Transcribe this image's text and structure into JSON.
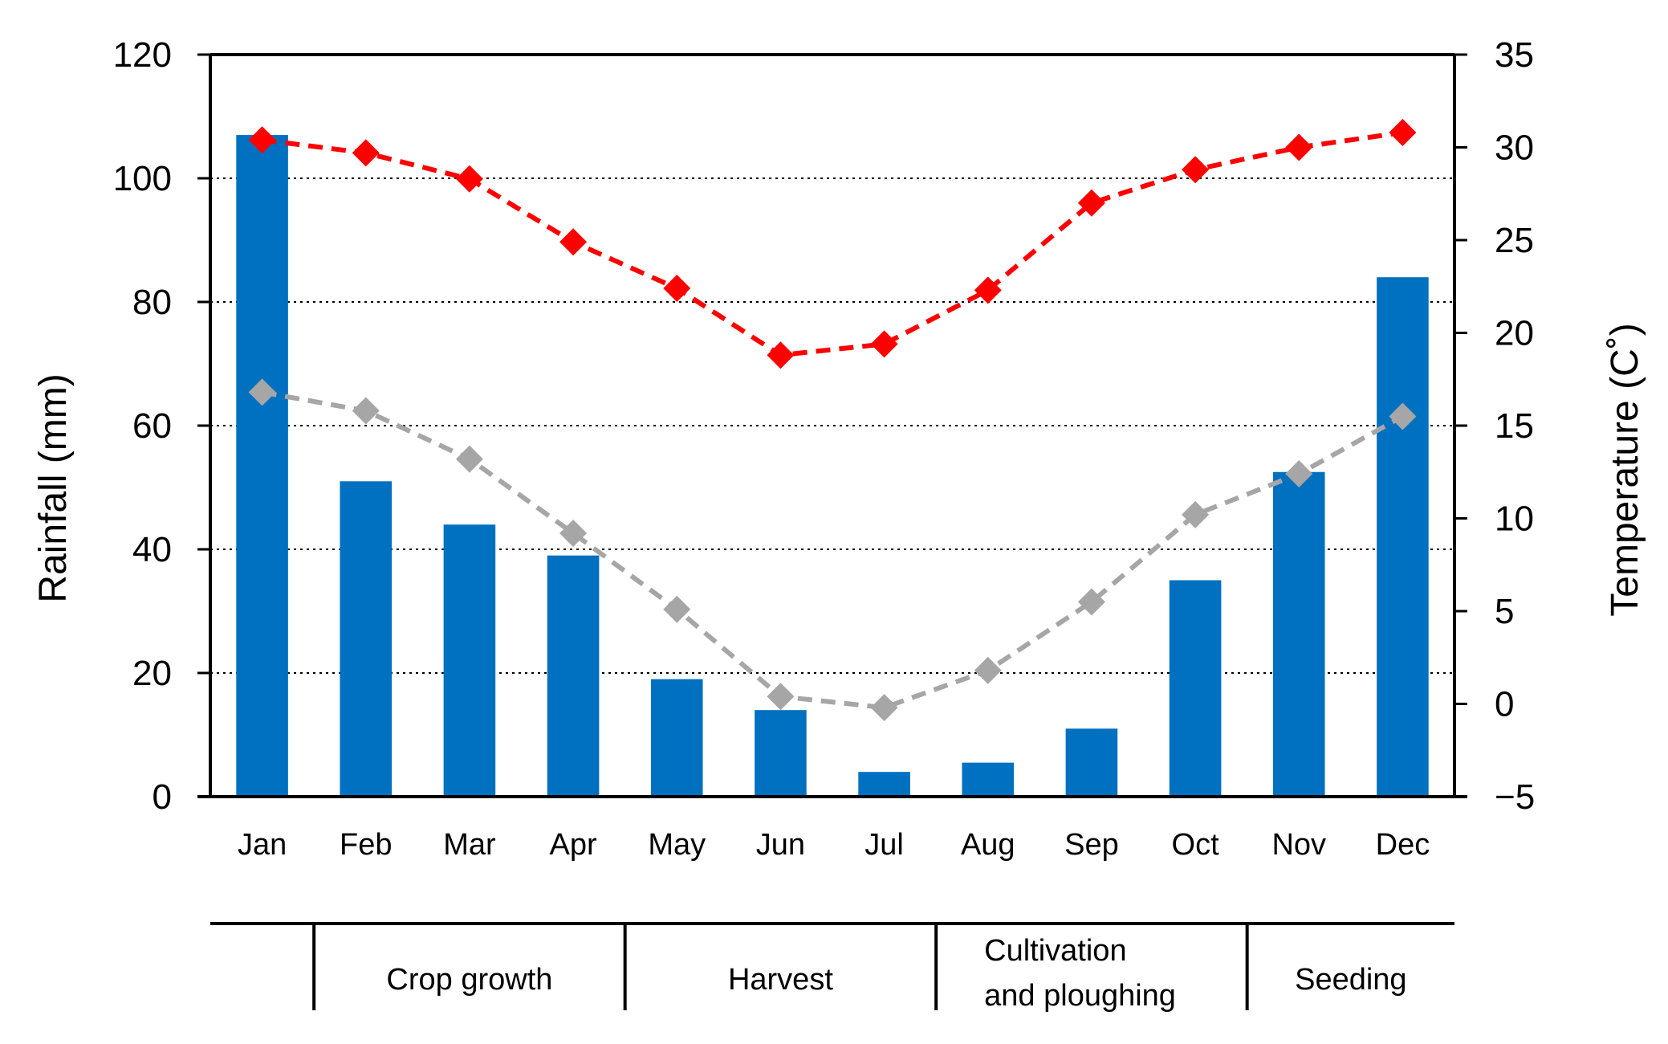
{
  "chart_data": {
    "type": "bar-line-combo",
    "categories": [
      "Jan",
      "Feb",
      "Mar",
      "Apr",
      "May",
      "Jun",
      "Jul",
      "Aug",
      "Sep",
      "Oct",
      "Nov",
      "Dec"
    ],
    "rainfall": {
      "values": [
        107,
        51,
        44,
        39,
        19,
        14,
        4,
        5.5,
        11,
        35,
        52.5,
        84
      ],
      "color": "#0070C0"
    },
    "temp_max": {
      "values": [
        30.4,
        29.7,
        28.3,
        24.9,
        22.4,
        18.8,
        19.4,
        22.3,
        27.0,
        28.8,
        30.0,
        30.8
      ],
      "color": "#FF0000"
    },
    "temp_min": {
      "values": [
        16.8,
        15.8,
        13.2,
        9.2,
        5.1,
        0.4,
        -0.2,
        1.8,
        5.5,
        10.2,
        12.4,
        15.5
      ],
      "color": "#A6A6A6"
    },
    "y_left": {
      "label": "Rainfall (mm)",
      "min": 0,
      "max": 120,
      "ticks": [
        0,
        20,
        40,
        60,
        80,
        100,
        120
      ]
    },
    "y_right": {
      "label": "Temperature (C˚)",
      "min": -5,
      "max": 35,
      "ticks": [
        "−5",
        "0",
        "5",
        "10",
        "15",
        "20",
        "25",
        "30",
        "35"
      ]
    },
    "grid": "horizontal-dotted",
    "phases": [
      {
        "label": "",
        "start": 0,
        "end": 1
      },
      {
        "label": "Crop growth",
        "start": 1,
        "end": 4
      },
      {
        "label": "Harvest",
        "start": 4,
        "end": 7
      },
      {
        "label": "Cultivation\nand ploughing",
        "start": 7,
        "end": 10
      },
      {
        "label": "Seeding",
        "start": 10,
        "end": 12
      }
    ]
  }
}
